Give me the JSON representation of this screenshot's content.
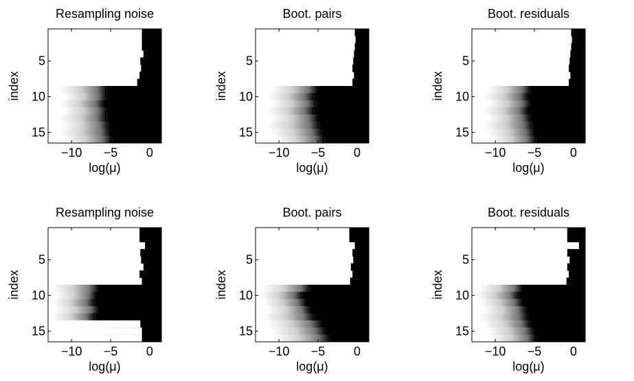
{
  "figure": {
    "panel_titles": [
      "Resampling noise",
      "Boot. pairs",
      "Boot. residuals",
      "Resampling noise",
      "Boot. pairs",
      "Boot. residuals"
    ],
    "xlabel": "log(μ)",
    "ylabel": "index"
  },
  "chart_data": [
    {
      "type": "heatmap",
      "title": "Resampling noise",
      "xlabel": "log(μ)",
      "ylabel": "index",
      "xlim": [
        -13,
        1.5
      ],
      "ylim": [
        16.5,
        0.5
      ],
      "xticks": [
        -10,
        -5,
        0
      ],
      "yticks": [
        5,
        10,
        15
      ],
      "colormap": "grayscale: white = 0, black = 1",
      "rows": [
        {
          "index": 1,
          "white_until": -1.0,
          "gray_from": -1.0,
          "black_from": -1.0
        },
        {
          "index": 2,
          "white_until": -1.0,
          "gray_from": -1.0,
          "black_from": -1.0
        },
        {
          "index": 3,
          "white_until": -1.0,
          "gray_from": -1.0,
          "black_from": -1.0
        },
        {
          "index": 4,
          "white_until": -0.8,
          "gray_from": -0.8,
          "black_from": -0.8
        },
        {
          "index": 5,
          "white_until": -1.2,
          "gray_from": -1.2,
          "black_from": -1.2
        },
        {
          "index": 6,
          "white_until": -1.1,
          "gray_from": -1.1,
          "black_from": -1.1
        },
        {
          "index": 7,
          "white_until": -1.3,
          "gray_from": -1.3,
          "black_from": -1.3
        },
        {
          "index": 8,
          "white_until": -1.6,
          "gray_from": -1.6,
          "black_from": -1.6
        },
        {
          "index": 9,
          "white_until": -11.5,
          "gray_from": -11.5,
          "black_from": -5.5
        },
        {
          "index": 10,
          "white_until": -11.0,
          "gray_from": -11.0,
          "black_from": -5.5
        },
        {
          "index": 11,
          "white_until": -11.5,
          "gray_from": -11.5,
          "black_from": -5.8
        },
        {
          "index": 12,
          "white_until": -11.0,
          "gray_from": -11.0,
          "black_from": -5.5
        },
        {
          "index": 13,
          "white_until": -11.5,
          "gray_from": -11.5,
          "black_from": -5.5
        },
        {
          "index": 14,
          "white_until": -11.2,
          "gray_from": -11.2,
          "black_from": -5.2
        },
        {
          "index": 15,
          "white_until": -11.5,
          "gray_from": -11.5,
          "black_from": -5.0
        },
        {
          "index": 16,
          "white_until": -11.0,
          "gray_from": -11.0,
          "black_from": -4.8
        }
      ]
    },
    {
      "type": "heatmap",
      "title": "Boot. pairs",
      "xlabel": "log(μ)",
      "ylabel": "index",
      "xlim": [
        -13,
        1.5
      ],
      "ylim": [
        16.5,
        0.5
      ],
      "xticks": [
        -10,
        -5,
        0
      ],
      "yticks": [
        5,
        10,
        15
      ],
      "colormap": "grayscale: white = 0, black = 1",
      "rows": [
        {
          "index": 1,
          "white_until": -0.3,
          "gray_from": -0.3,
          "black_from": -0.3
        },
        {
          "index": 2,
          "white_until": -0.2,
          "gray_from": -0.2,
          "black_from": -0.2
        },
        {
          "index": 3,
          "white_until": -0.3,
          "gray_from": -0.3,
          "black_from": -0.3
        },
        {
          "index": 4,
          "white_until": -0.4,
          "gray_from": -0.4,
          "black_from": -0.4
        },
        {
          "index": 5,
          "white_until": -0.5,
          "gray_from": -0.5,
          "black_from": -0.5
        },
        {
          "index": 6,
          "white_until": -0.6,
          "gray_from": -0.6,
          "black_from": -0.6
        },
        {
          "index": 7,
          "white_until": -0.4,
          "gray_from": -0.4,
          "black_from": -0.4
        },
        {
          "index": 8,
          "white_until": -0.6,
          "gray_from": -0.6,
          "black_from": -0.6
        },
        {
          "index": 9,
          "white_until": -11.0,
          "gray_from": -11.0,
          "black_from": -5.0
        },
        {
          "index": 10,
          "white_until": -11.5,
          "gray_from": -11.5,
          "black_from": -5.5
        },
        {
          "index": 11,
          "white_until": -11.0,
          "gray_from": -11.0,
          "black_from": -5.2
        },
        {
          "index": 12,
          "white_until": -11.5,
          "gray_from": -11.5,
          "black_from": -5.5
        },
        {
          "index": 13,
          "white_until": -11.0,
          "gray_from": -11.0,
          "black_from": -5.0
        },
        {
          "index": 14,
          "white_until": -11.5,
          "gray_from": -11.5,
          "black_from": -4.8
        },
        {
          "index": 15,
          "white_until": -11.0,
          "gray_from": -11.0,
          "black_from": -4.5
        },
        {
          "index": 16,
          "white_until": -10.5,
          "gray_from": -10.5,
          "black_from": -4.2
        }
      ]
    },
    {
      "type": "heatmap",
      "title": "Boot. residuals",
      "xlabel": "log(μ)",
      "ylabel": "index",
      "xlim": [
        -13,
        1.5
      ],
      "ylim": [
        16.5,
        0.5
      ],
      "xticks": [
        -10,
        -5,
        0
      ],
      "yticks": [
        5,
        10,
        15
      ],
      "colormap": "grayscale: white = 0, black = 1",
      "rows": [
        {
          "index": 1,
          "white_until": -0.3,
          "gray_from": -0.3,
          "black_from": -0.3
        },
        {
          "index": 2,
          "white_until": -0.2,
          "gray_from": -0.2,
          "black_from": -0.2
        },
        {
          "index": 3,
          "white_until": -0.3,
          "gray_from": -0.3,
          "black_from": -0.3
        },
        {
          "index": 4,
          "white_until": -0.4,
          "gray_from": -0.4,
          "black_from": -0.4
        },
        {
          "index": 5,
          "white_until": -0.5,
          "gray_from": -0.5,
          "black_from": -0.5
        },
        {
          "index": 6,
          "white_until": -0.6,
          "gray_from": -0.6,
          "black_from": -0.6
        },
        {
          "index": 7,
          "white_until": -0.4,
          "gray_from": -0.4,
          "black_from": -0.4
        },
        {
          "index": 8,
          "white_until": -0.6,
          "gray_from": -0.6,
          "black_from": -0.6
        },
        {
          "index": 9,
          "white_until": -11.0,
          "gray_from": -11.0,
          "black_from": -5.5
        },
        {
          "index": 10,
          "white_until": -11.5,
          "gray_from": -11.5,
          "black_from": -5.8
        },
        {
          "index": 11,
          "white_until": -11.0,
          "gray_from": -11.0,
          "black_from": -5.5
        },
        {
          "index": 12,
          "white_until": -11.5,
          "gray_from": -11.5,
          "black_from": -5.8
        },
        {
          "index": 13,
          "white_until": -11.0,
          "gray_from": -11.0,
          "black_from": -5.5
        },
        {
          "index": 14,
          "white_until": -11.5,
          "gray_from": -11.5,
          "black_from": -5.2
        },
        {
          "index": 15,
          "white_until": -11.0,
          "gray_from": -11.0,
          "black_from": -5.0
        },
        {
          "index": 16,
          "white_until": -10.5,
          "gray_from": -10.5,
          "black_from": -4.8
        }
      ]
    },
    {
      "type": "heatmap",
      "title": "Resampling noise",
      "xlabel": "log(μ)",
      "ylabel": "index",
      "xlim": [
        -13,
        1.5
      ],
      "ylim": [
        16.5,
        0.5
      ],
      "xticks": [
        -10,
        -5,
        0
      ],
      "yticks": [
        5,
        10,
        15
      ],
      "colormap": "grayscale: white = 0, black = 1",
      "rows": [
        {
          "index": 1,
          "white_until": -1.3,
          "gray_from": -1.3,
          "black_from": -1.3
        },
        {
          "index": 2,
          "white_until": -1.3,
          "gray_from": -1.3,
          "black_from": -1.3
        },
        {
          "index": 3,
          "white_until": -0.6,
          "gray_from": -0.6,
          "black_from": -0.6
        },
        {
          "index": 4,
          "white_until": -1.2,
          "gray_from": -1.2,
          "black_from": -1.2
        },
        {
          "index": 5,
          "white_until": -1.1,
          "gray_from": -1.1,
          "black_from": -1.1
        },
        {
          "index": 6,
          "white_until": -0.8,
          "gray_from": -0.8,
          "black_from": -0.8
        },
        {
          "index": 7,
          "white_until": -1.3,
          "gray_from": -1.3,
          "black_from": -1.3
        },
        {
          "index": 8,
          "white_until": -1.0,
          "gray_from": -1.0,
          "black_from": -1.0
        },
        {
          "index": 9,
          "white_until": -12.5,
          "gray_from": -12.5,
          "black_from": -6.5
        },
        {
          "index": 10,
          "white_until": -12.0,
          "gray_from": -12.0,
          "black_from": -6.8
        },
        {
          "index": 11,
          "white_until": -12.5,
          "gray_from": -12.5,
          "black_from": -7.0
        },
        {
          "index": 12,
          "white_until": -12.0,
          "gray_from": -12.0,
          "black_from": -6.5
        },
        {
          "index": 13,
          "white_until": -12.5,
          "gray_from": -12.5,
          "black_from": -7.0
        },
        {
          "index": 14,
          "white_until": -1.2,
          "gray_from": -12.0,
          "black_from": -1.2
        },
        {
          "index": 15,
          "white_until": -1.0,
          "gray_from": -12.5,
          "black_from": -1.0
        },
        {
          "index": 16,
          "white_until": -1.0,
          "gray_from": -12.0,
          "black_from": -1.0
        }
      ]
    },
    {
      "type": "heatmap",
      "title": "Boot. pairs",
      "xlabel": "log(μ)",
      "ylabel": "index",
      "xlim": [
        -13,
        1.5
      ],
      "ylim": [
        16.5,
        0.5
      ],
      "xticks": [
        -10,
        -5,
        0
      ],
      "yticks": [
        5,
        10,
        15
      ],
      "colormap": "grayscale: white = 0, black = 1",
      "rows": [
        {
          "index": 1,
          "white_until": -1.0,
          "gray_from": -1.0,
          "black_from": -1.0
        },
        {
          "index": 2,
          "white_until": -1.0,
          "gray_from": -1.0,
          "black_from": -1.0
        },
        {
          "index": 3,
          "white_until": -0.3,
          "gray_from": -0.3,
          "black_from": -0.3
        },
        {
          "index": 4,
          "white_until": -0.6,
          "gray_from": -0.6,
          "black_from": -0.6
        },
        {
          "index": 5,
          "white_until": -0.5,
          "gray_from": -0.5,
          "black_from": -0.5
        },
        {
          "index": 6,
          "white_until": -0.8,
          "gray_from": -0.8,
          "black_from": -0.8
        },
        {
          "index": 7,
          "white_until": -0.6,
          "gray_from": -0.6,
          "black_from": -0.6
        },
        {
          "index": 8,
          "white_until": -0.9,
          "gray_from": -0.9,
          "black_from": -0.9
        },
        {
          "index": 9,
          "white_until": -12.0,
          "gray_from": -12.0,
          "black_from": -6.0
        },
        {
          "index": 10,
          "white_until": -12.5,
          "gray_from": -12.5,
          "black_from": -7.0
        },
        {
          "index": 11,
          "white_until": -12.0,
          "gray_from": -12.0,
          "black_from": -6.5
        },
        {
          "index": 12,
          "white_until": -11.5,
          "gray_from": -11.5,
          "black_from": -6.0
        },
        {
          "index": 13,
          "white_until": -12.0,
          "gray_from": -12.0,
          "black_from": -5.5
        },
        {
          "index": 14,
          "white_until": -11.5,
          "gray_from": -11.5,
          "black_from": -4.5
        },
        {
          "index": 15,
          "white_until": -11.0,
          "gray_from": -11.0,
          "black_from": -4.0
        },
        {
          "index": 16,
          "white_until": -10.5,
          "gray_from": -10.5,
          "black_from": -3.5
        }
      ]
    },
    {
      "type": "heatmap",
      "title": "Boot. residuals",
      "xlabel": "log(μ)",
      "ylabel": "index",
      "xlim": [
        -13,
        1.5
      ],
      "ylim": [
        16.5,
        0.5
      ],
      "xticks": [
        -10,
        -5,
        0
      ],
      "yticks": [
        5,
        10,
        15
      ],
      "colormap": "grayscale: white = 0, black = 1",
      "rows": [
        {
          "index": 1,
          "white_until": -0.8,
          "gray_from": -0.8,
          "black_from": -0.8
        },
        {
          "index": 2,
          "white_until": -0.8,
          "gray_from": -0.8,
          "black_from": -0.8
        },
        {
          "index": 3,
          "white_until": 0.7,
          "gray_from": 0.7,
          "black_from": 0.7
        },
        {
          "index": 4,
          "white_until": -0.8,
          "gray_from": -0.8,
          "black_from": -0.8
        },
        {
          "index": 5,
          "white_until": -0.5,
          "gray_from": -0.5,
          "black_from": -0.5
        },
        {
          "index": 6,
          "white_until": -0.8,
          "gray_from": -0.8,
          "black_from": -0.8
        },
        {
          "index": 7,
          "white_until": -0.6,
          "gray_from": -0.6,
          "black_from": -0.6
        },
        {
          "index": 8,
          "white_until": -0.9,
          "gray_from": -0.9,
          "black_from": -0.9
        },
        {
          "index": 9,
          "white_until": -12.0,
          "gray_from": -12.0,
          "black_from": -6.5
        },
        {
          "index": 10,
          "white_until": -12.5,
          "gray_from": -12.5,
          "black_from": -7.0
        },
        {
          "index": 11,
          "white_until": -12.0,
          "gray_from": -12.0,
          "black_from": -6.5
        },
        {
          "index": 12,
          "white_until": -11.5,
          "gray_from": -11.5,
          "black_from": -6.0
        },
        {
          "index": 13,
          "white_until": -12.0,
          "gray_from": -12.0,
          "black_from": -5.8
        },
        {
          "index": 14,
          "white_until": -11.5,
          "gray_from": -11.5,
          "black_from": -5.5
        },
        {
          "index": 15,
          "white_until": -11.0,
          "gray_from": -11.0,
          "black_from": -5.0
        },
        {
          "index": 16,
          "white_until": -10.5,
          "gray_from": -10.5,
          "black_from": -4.8
        }
      ]
    }
  ]
}
